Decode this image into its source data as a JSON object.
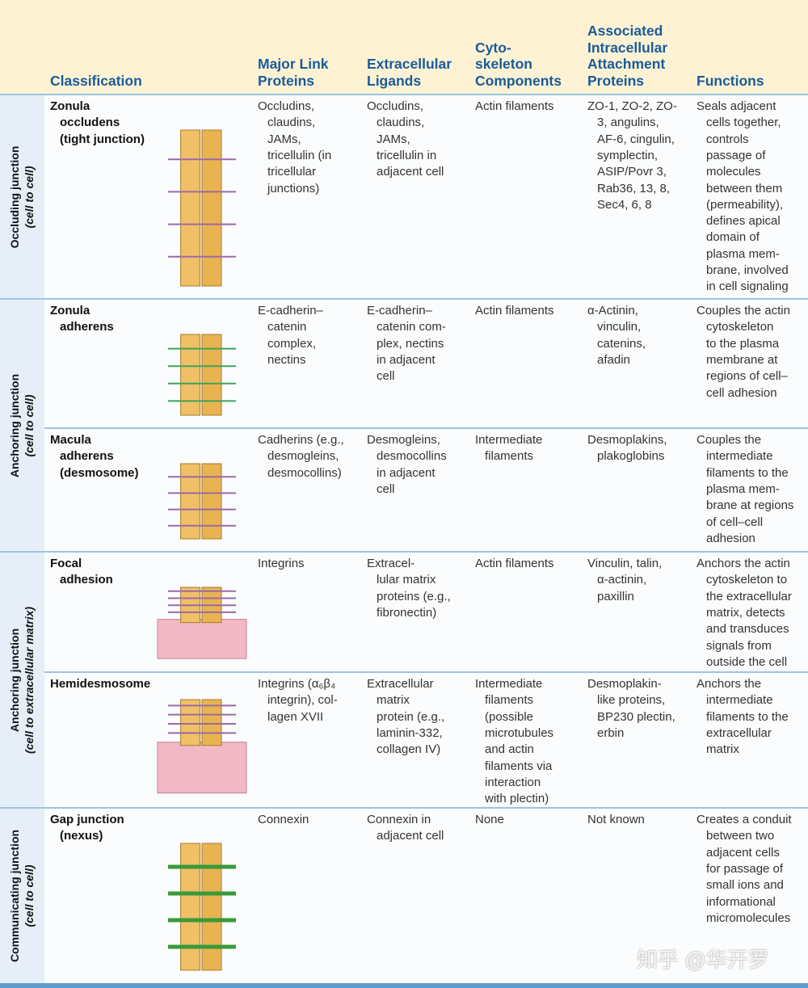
{
  "header": {
    "columns": [
      [
        "Classification"
      ],
      [
        "Major Link",
        "Proteins"
      ],
      [
        "Extracellular",
        "Ligands"
      ],
      [
        "Cyto-",
        "skeleton",
        "Components"
      ],
      [
        "Associated",
        "Intracellular",
        "Attachment",
        "Proteins"
      ],
      [
        "Functions"
      ]
    ]
  },
  "groups": [
    {
      "name": "Occluding junction",
      "scope": "(cell to cell)"
    },
    {
      "name": "Anchoring junction",
      "scope": "(cell to cell)"
    },
    {
      "name": "Anchoring junction",
      "scope": "(cell to extracellular matrix)"
    },
    {
      "name": "Communicating junction",
      "scope": "(cell to cell)"
    }
  ],
  "rows": [
    {
      "cells": [
        [
          "Zonula",
          "occludens",
          "(tight junction)"
        ],
        [
          "Occludins,",
          "claudins,",
          "JAMs,",
          "tricellulin (in",
          "tricellular",
          "junctions)"
        ],
        [
          "Occludins,",
          "claudins,",
          "JAMs,",
          "tricellulin in",
          "adjacent cell"
        ],
        [
          "Actin filaments"
        ],
        [
          "ZO-1, ZO-2, ZO-",
          "3, angulins,",
          "AF-6, cingulin,",
          "symplectin,",
          "ASIP/Povr 3,",
          "Rab36, 13, 8,",
          "Sec4, 6, 8"
        ],
        [
          "Seals adjacent",
          "cells together,",
          "controls",
          "passage of",
          "molecules",
          "between them",
          "(permeability),",
          "defines apical",
          "domain of",
          "plasma mem-",
          "brane, involved",
          "in cell signaling"
        ]
      ]
    },
    {
      "cells": [
        [
          "Zonula",
          "adherens"
        ],
        [
          "E-cadherin–",
          "catenin",
          "complex,",
          "nectins"
        ],
        [
          "E-cadherin–",
          "catenin com-",
          "plex, nectins",
          "in adjacent",
          "cell"
        ],
        [
          "Actin filaments"
        ],
        [
          "α-Actinin,",
          "vinculin,",
          "catenins,",
          "afadin"
        ],
        [
          "Couples the actin",
          "cytoskeleton",
          "to the plasma",
          "membrane at",
          "regions of cell–",
          "cell adhesion"
        ]
      ]
    },
    {
      "cells": [
        [
          "Macula",
          "adherens",
          "(desmosome)"
        ],
        [
          "Cadherins (e.g.,",
          "desmogleins,",
          "desmocollins)"
        ],
        [
          "Desmogleins,",
          "desmocollins",
          "in adjacent",
          "cell"
        ],
        [
          "Intermediate",
          "filaments"
        ],
        [
          "Desmoplakins,",
          "plakoglobins"
        ],
        [
          "Couples the",
          "intermediate",
          "filaments to the",
          "plasma mem-",
          "brane at regions",
          "of cell–cell",
          "adhesion"
        ]
      ]
    },
    {
      "cells": [
        [
          "Focal",
          "adhesion"
        ],
        [
          "Integrins"
        ],
        [
          "Extracel-",
          "lular matrix",
          "proteins (e.g.,",
          "fibronectin)"
        ],
        [
          "Actin filaments"
        ],
        [
          "Vinculin, talin,",
          "α-actinin,",
          "paxillin"
        ],
        [
          "Anchors the actin",
          "cytoskeleton to",
          "the extracellular",
          "matrix, detects",
          "and transduces",
          "signals from",
          "outside the cell"
        ]
      ]
    },
    {
      "cells": [
        [
          "Hemidesmosome"
        ],
        [
          "Integrins (α₆β₄",
          "integrin), col-",
          "lagen XVII"
        ],
        [
          "Extracellular",
          "matrix",
          "protein (e.g.,",
          "laminin-332,",
          "collagen IV)"
        ],
        [
          "Intermediate",
          "filaments",
          "(possible",
          "microtubules",
          "and actin",
          "filaments via",
          "interaction",
          "with plectin)"
        ],
        [
          "Desmoplakin-",
          "like proteins,",
          "BP230 plectin,",
          "erbin"
        ],
        [
          "Anchors the",
          "intermediate",
          "filaments to the",
          "extracellular",
          "matrix"
        ]
      ]
    },
    {
      "cells": [
        [
          "Gap junction",
          "(nexus)"
        ],
        [
          "Connexin"
        ],
        [
          "Connexin in",
          "adjacent cell"
        ],
        [
          "None"
        ],
        [
          "Not known"
        ],
        [
          "Creates a conduit",
          "between two",
          "adjacent cells",
          "for passage of",
          "small ions and",
          "informational",
          "micromolecules"
        ]
      ]
    }
  ],
  "watermark": "知乎 @华开罗"
}
